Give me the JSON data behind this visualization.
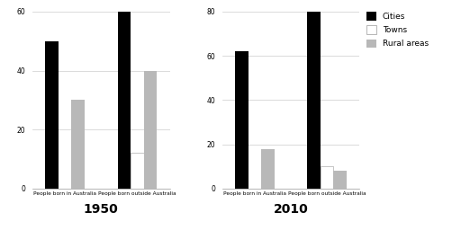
{
  "year_1950": {
    "groups": [
      "People born in Australia",
      "People born outside Australia"
    ],
    "cities": [
      50,
      60
    ],
    "towns": [
      0,
      12
    ],
    "rural": [
      30,
      40
    ],
    "ylim": [
      0,
      60
    ],
    "yticks": [
      0,
      20,
      40,
      60
    ],
    "title": "1950"
  },
  "year_2010": {
    "groups": [
      "People born in Australia",
      "People born outside Australia"
    ],
    "cities": [
      62,
      80
    ],
    "towns": [
      0,
      10
    ],
    "rural": [
      18,
      8
    ],
    "ylim": [
      0,
      80
    ],
    "yticks": [
      0,
      20,
      40,
      60,
      80
    ],
    "title": "2010"
  },
  "colors": {
    "cities": "#000000",
    "towns": "#ffffff",
    "rural": "#b8b8b8"
  },
  "legend_labels": [
    "Cities",
    "Towns",
    "Rural areas"
  ],
  "background_color": "#ffffff"
}
